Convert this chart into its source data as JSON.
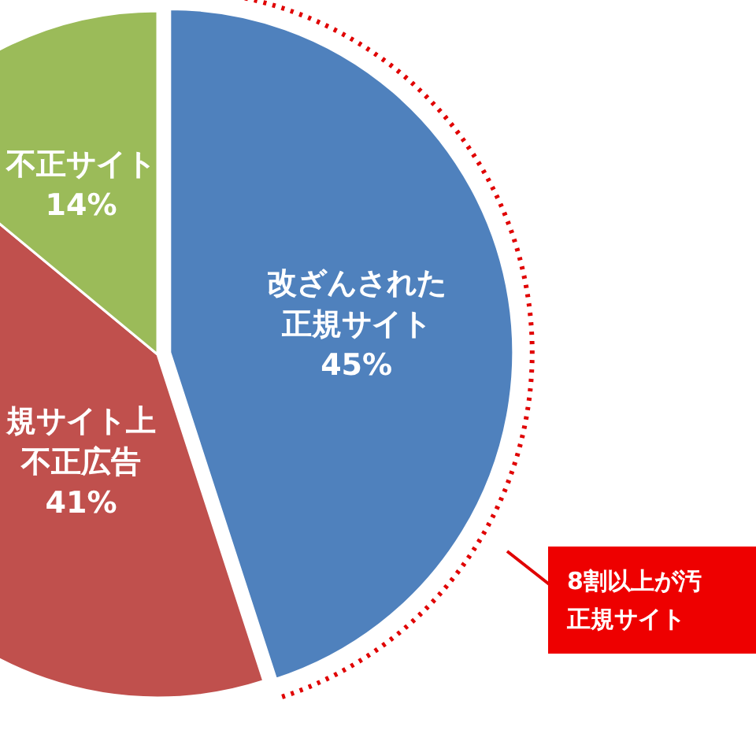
{
  "chart_data": {
    "type": "pie",
    "categories": [
      "改ざんされた正規サイト",
      "規サイト上不正広告",
      "不正サイト"
    ],
    "values": [
      45,
      41,
      14
    ],
    "colors": [
      "#4f81bd",
      "#c0504d",
      "#9bbb59"
    ],
    "value_labels": [
      "45%",
      "41%",
      "14%"
    ],
    "annotations": [
      "8割以上が汚正規サイト"
    ]
  }
}
